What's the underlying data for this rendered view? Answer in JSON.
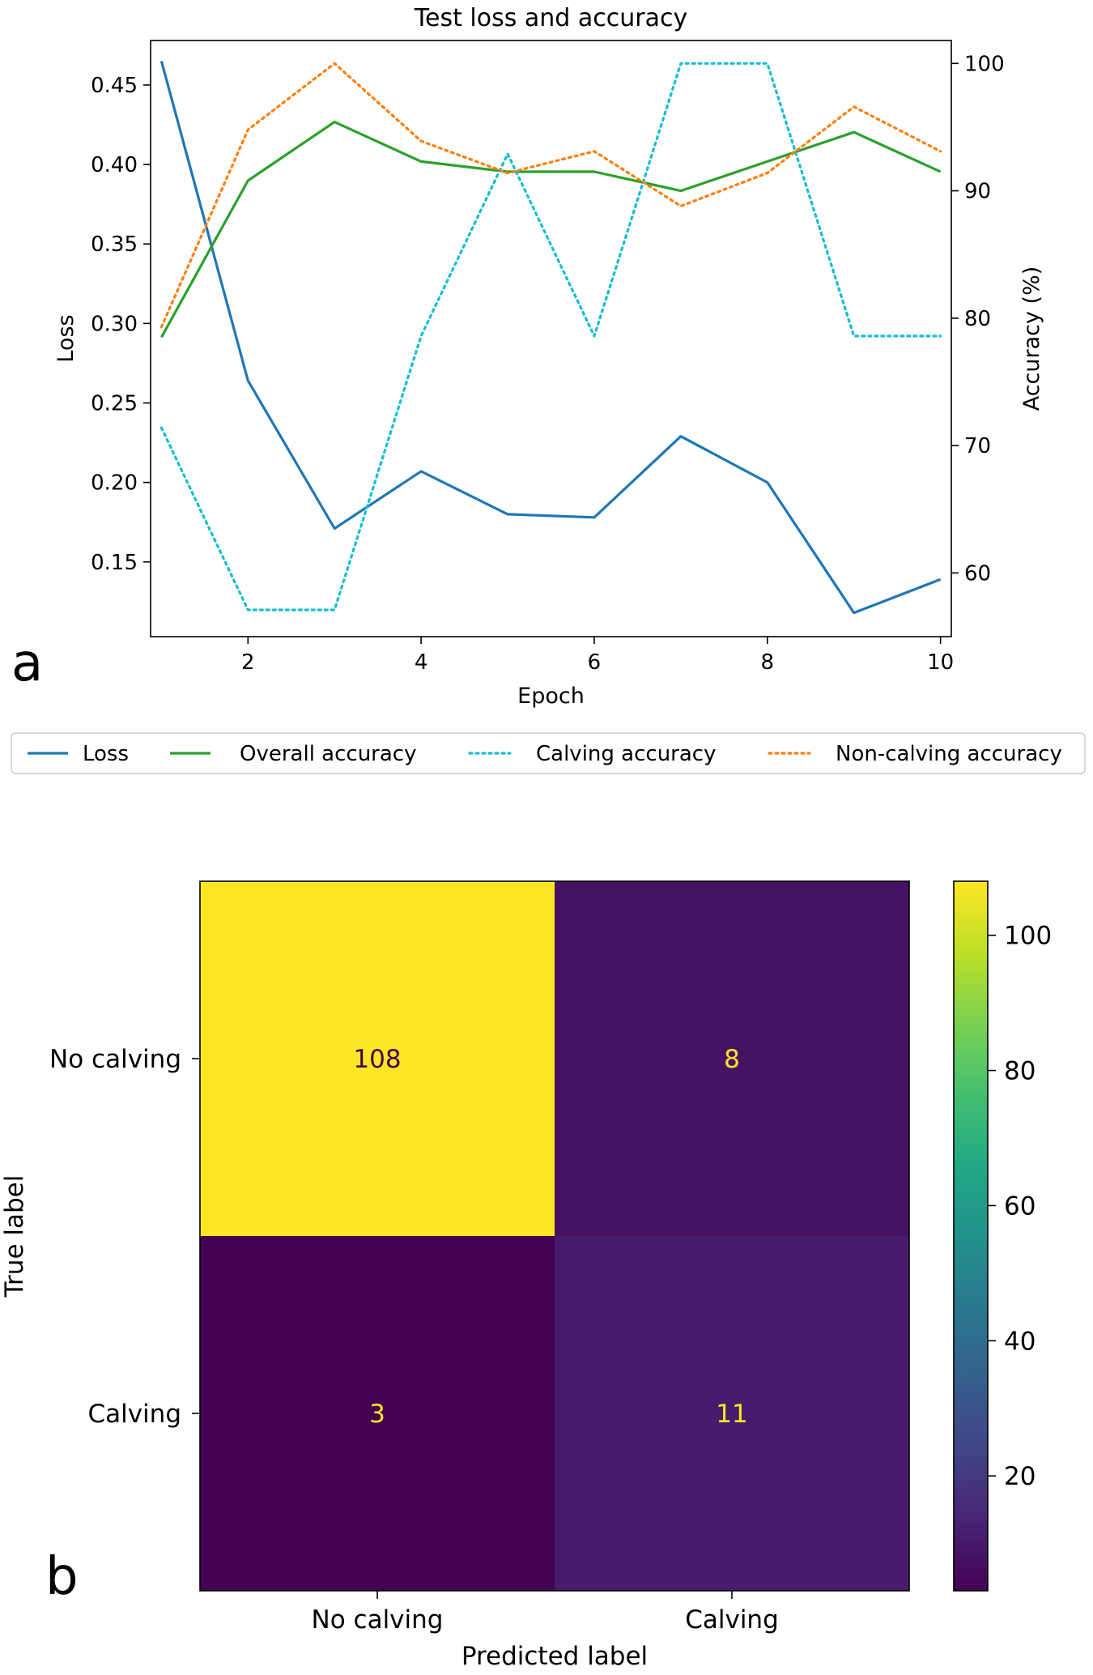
{
  "chart_data": [
    {
      "type": "line",
      "panel_label": "a",
      "title": "Test loss and accuracy",
      "xlabel": "Epoch",
      "ylabel_left": "Loss",
      "ylabel_right": "Accuracy (%)",
      "xlim": [
        0.875,
        10.125
      ],
      "ylim_left": [
        0.103,
        0.478
      ],
      "ylim_right": [
        55.0,
        101.8
      ],
      "x_ticks": [
        2,
        4,
        6,
        8,
        10
      ],
      "y_ticks_left": [
        0.15,
        0.2,
        0.25,
        0.3,
        0.35,
        0.4,
        0.45
      ],
      "y_tick_labels_left": [
        "0.15",
        "0.20",
        "0.25",
        "0.30",
        "0.35",
        "0.40",
        "0.45"
      ],
      "y_ticks_right": [
        60,
        70,
        80,
        90,
        100
      ],
      "x": [
        1,
        2,
        3,
        4,
        5,
        6,
        7,
        8,
        9,
        10
      ],
      "series": [
        {
          "name": "Loss",
          "axis": "left",
          "color": "#1f77b4",
          "style": "solid",
          "values": [
            0.465,
            0.264,
            0.171,
            0.207,
            0.18,
            0.178,
            0.229,
            0.2,
            0.118,
            0.139
          ]
        },
        {
          "name": "Overall accuracy",
          "axis": "right",
          "color": "#2ca02c",
          "style": "solid",
          "values": [
            78.5,
            90.8,
            95.4,
            92.3,
            91.5,
            91.5,
            90.0,
            92.3,
            94.6,
            91.5
          ]
        },
        {
          "name": "Calving accuracy",
          "axis": "right",
          "color": "#17becf",
          "style": "dotted",
          "values": [
            71.4,
            57.1,
            57.1,
            78.6,
            92.9,
            78.6,
            100.0,
            100.0,
            78.6,
            78.6
          ]
        },
        {
          "name": "Non-calving accuracy",
          "axis": "right",
          "color": "#ff7f0e",
          "style": "dotted",
          "values": [
            79.3,
            94.8,
            100.0,
            93.9,
            91.4,
            93.1,
            88.8,
            91.4,
            96.6,
            93.1
          ]
        }
      ],
      "legend": "below"
    },
    {
      "type": "heatmap",
      "panel_label": "b",
      "xlabel": "Predicted label",
      "ylabel": "True label",
      "x_categories": [
        "No calving",
        "Calving"
      ],
      "y_categories": [
        "No calving",
        "Calving"
      ],
      "values": [
        [
          108,
          8
        ],
        [
          3,
          11
        ]
      ],
      "colormap": "viridis",
      "colorbar_range": [
        3,
        108
      ],
      "colorbar_ticks": [
        20,
        40,
        60,
        80,
        100
      ]
    }
  ]
}
